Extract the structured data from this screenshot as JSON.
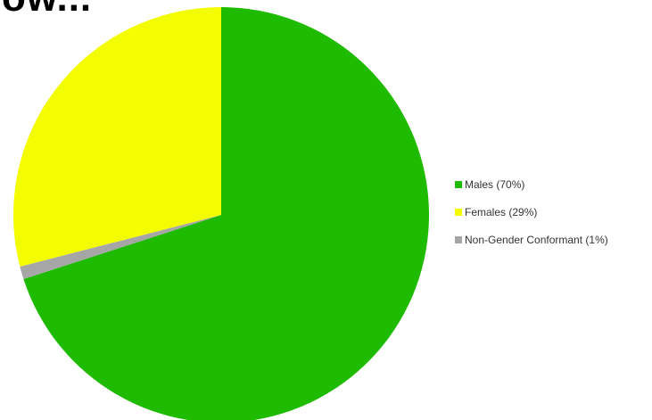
{
  "header": {
    "title_fragment": "ow..."
  },
  "chart_data": {
    "type": "pie",
    "start_angle_deg": 0,
    "direction": "clockwise",
    "legend_position": "right",
    "slices": [
      {
        "label": "Males (70%)",
        "name": "Males",
        "value": 70,
        "color": "#1fbb00"
      },
      {
        "label": "Non-Gender Conformant (1%)",
        "name": "Non-Gender Conformant",
        "value": 1,
        "color": "#a6a6a6"
      },
      {
        "label": "Females (29%)",
        "name": "Females",
        "value": 29,
        "color": "#f4fc00"
      }
    ],
    "legend": [
      {
        "label": "Males (70%)",
        "color": "#1fbb00"
      },
      {
        "label": "Females (29%)",
        "color": "#f4fc00"
      },
      {
        "label": "Non-Gender Conformant (1%)",
        "color": "#a6a6a6"
      }
    ]
  }
}
